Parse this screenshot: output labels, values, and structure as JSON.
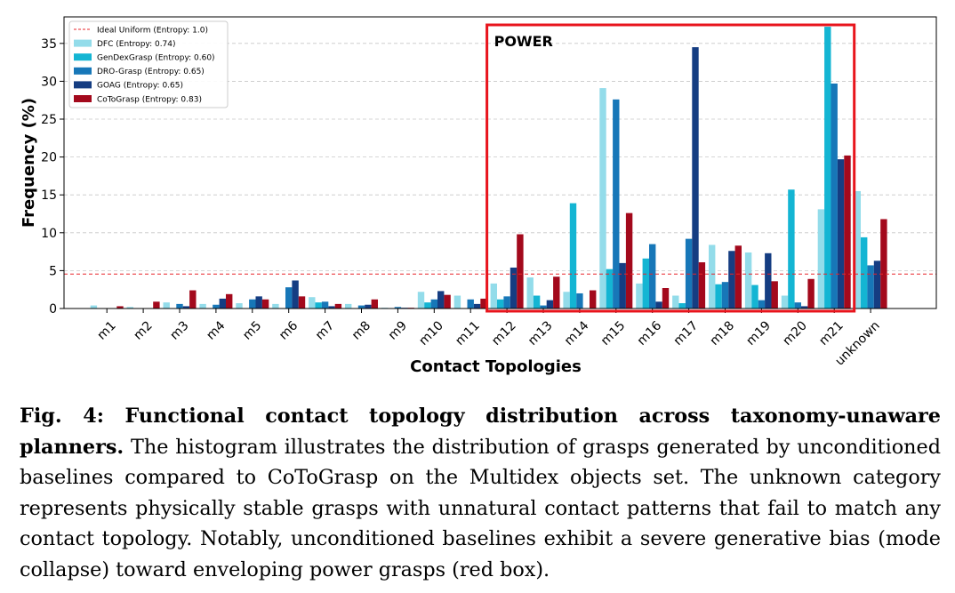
{
  "chart_data": {
    "type": "bar",
    "xlabel": "Contact Topologies",
    "ylabel": "Frequency (%)",
    "ylim": [
      0,
      38.5
    ],
    "yticks": [
      0,
      5,
      10,
      15,
      20,
      25,
      30,
      35
    ],
    "grid": "y-dashed",
    "legend_position": "top-left",
    "categories": [
      "m1",
      "m2",
      "m3",
      "m4",
      "m5",
      "m6",
      "m7",
      "m8",
      "m9",
      "m10",
      "m11",
      "m12",
      "m13",
      "m14",
      "m15",
      "m16",
      "m17",
      "m18",
      "m19",
      "m20",
      "m21",
      "unknown"
    ],
    "series": [
      {
        "name": "DFC (Entropy: 0.74)",
        "color": "#93dcea",
        "values": [
          0.4,
          0.2,
          0.8,
          0.6,
          0.7,
          0.6,
          1.5,
          0.6,
          0.1,
          2.2,
          1.7,
          3.3,
          4.1,
          2.2,
          29.1,
          3.3,
          1.7,
          8.4,
          7.4,
          1.7,
          13.1,
          15.5
        ]
      },
      {
        "name": "GenDexGrasp (Entropy: 0.60)",
        "color": "#14b5d3",
        "values": [
          0.0,
          0.0,
          0.0,
          0.0,
          0.0,
          0.0,
          0.8,
          0.0,
          0.0,
          0.8,
          0.0,
          1.2,
          1.7,
          13.9,
          5.2,
          6.6,
          0.7,
          3.2,
          3.1,
          15.7,
          37.2,
          9.4
        ]
      },
      {
        "name": "DRO-Grasp (Entropy: 0.65)",
        "color": "#1777b8",
        "values": [
          0.0,
          0.0,
          0.6,
          0.5,
          1.2,
          2.8,
          0.9,
          0.4,
          0.2,
          1.2,
          1.2,
          1.6,
          0.4,
          2.0,
          27.6,
          8.5,
          9.2,
          3.5,
          1.1,
          0.8,
          29.7,
          5.7
        ]
      },
      {
        "name": "GOAG (Entropy: 0.65)",
        "color": "#153d82",
        "values": [
          0.0,
          0.0,
          0.3,
          1.3,
          1.6,
          3.7,
          0.3,
          0.5,
          0.1,
          2.3,
          0.6,
          5.4,
          1.1,
          0.0,
          6.0,
          0.9,
          34.5,
          7.6,
          7.3,
          0.3,
          19.7,
          6.3
        ]
      },
      {
        "name": "CoToGrasp (Entropy: 0.83)",
        "color": "#a3091c",
        "values": [
          0.3,
          0.9,
          2.4,
          1.9,
          1.2,
          1.6,
          0.6,
          1.2,
          0.1,
          1.8,
          1.3,
          9.8,
          4.2,
          2.4,
          12.6,
          2.7,
          6.1,
          8.3,
          3.6,
          3.9,
          20.2,
          11.8
        ]
      }
    ],
    "reference_line": {
      "name": "Ideal Uniform (Entropy: 1.0)",
      "value": 4.545,
      "color": "#e8252b"
    },
    "annotation": {
      "text": "POWER",
      "from_category": "m12",
      "to_category": "m21",
      "color": "#e8141c"
    }
  },
  "caption": {
    "label": "Fig. 4: Functional contact topology distribution across taxonomy-unaware planners.",
    "body": " The histogram illustrates the distribution of grasps generated by unconditioned baselines compared to CoToGrasp on the Multidex objects set. The unknown category represents physically stable grasps with unnatural contact patterns that fail to match any contact topology. Notably, unconditioned baselines exhibit a severe generative bias (mode collapse) toward enveloping power grasps (red box)."
  }
}
